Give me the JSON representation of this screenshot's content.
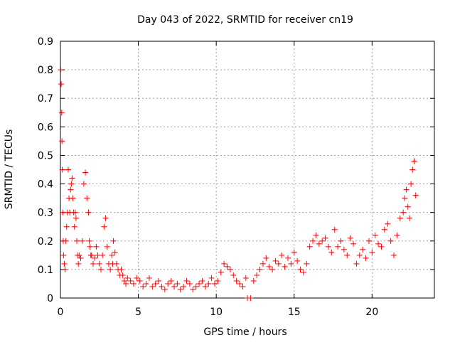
{
  "chart_data": {
    "type": "scatter",
    "title": "Day 043 of 2022, SRMTID for receiver cn19",
    "xlabel": "GPS time / hours",
    "ylabel": "SRMTID / TECUs",
    "xlim": [
      0,
      24
    ],
    "ylim": [
      0,
      0.9
    ],
    "xticks": [
      0,
      5,
      10,
      15,
      20
    ],
    "yticks": [
      0,
      0.1,
      0.2,
      0.3,
      0.4,
      0.5,
      0.6,
      0.7,
      0.8,
      0.9
    ],
    "xtick_labels": [
      "0",
      "5",
      "10",
      "15",
      "20"
    ],
    "ytick_labels": [
      "0",
      "0.1",
      "0.2",
      "0.3",
      "0.4",
      "0.5",
      "0.6",
      "0.7",
      "0.8",
      "0.9"
    ],
    "grid": true,
    "marker": "+",
    "color": "#ff0000",
    "series": [
      {
        "name": "SRMTID",
        "x": [
          0.02,
          0.05,
          0.08,
          0.1,
          0.12,
          0.15,
          0.18,
          0.2,
          0.25,
          0.3,
          0.35,
          0.4,
          0.45,
          0.5,
          0.55,
          0.6,
          0.65,
          0.7,
          0.75,
          0.8,
          0.85,
          0.9,
          0.95,
          1.0,
          1.05,
          1.1,
          1.15,
          1.2,
          1.3,
          1.4,
          1.5,
          1.6,
          1.7,
          1.8,
          1.85,
          1.9,
          1.95,
          2.0,
          2.1,
          2.2,
          2.3,
          2.4,
          2.5,
          2.6,
          2.7,
          2.8,
          2.9,
          3.0,
          3.1,
          3.2,
          3.3,
          3.35,
          3.4,
          3.5,
          3.6,
          3.7,
          3.8,
          3.9,
          4.0,
          4.1,
          4.2,
          4.3,
          4.5,
          4.7,
          4.9,
          5.1,
          5.3,
          5.5,
          5.7,
          5.9,
          6.1,
          6.3,
          6.5,
          6.7,
          6.9,
          7.1,
          7.3,
          7.5,
          7.7,
          7.9,
          8.1,
          8.3,
          8.5,
          8.7,
          8.9,
          9.1,
          9.3,
          9.5,
          9.7,
          9.9,
          10.1,
          10.3,
          10.5,
          10.7,
          10.9,
          11.1,
          11.3,
          11.5,
          11.7,
          11.9,
          12.0,
          12.2,
          12.4,
          12.6,
          12.8,
          13.0,
          13.2,
          13.4,
          13.6,
          13.8,
          14.0,
          14.2,
          14.4,
          14.6,
          14.8,
          15.0,
          15.2,
          15.4,
          15.6,
          15.8,
          16.0,
          16.2,
          16.4,
          16.6,
          16.8,
          17.0,
          17.2,
          17.4,
          17.6,
          17.8,
          18.0,
          18.2,
          18.4,
          18.6,
          18.8,
          19.0,
          19.2,
          19.4,
          19.6,
          19.8,
          20.0,
          20.2,
          20.4,
          20.6,
          20.8,
          21.0,
          21.2,
          21.4,
          21.6,
          21.8,
          22.0,
          22.1,
          22.2,
          22.3,
          22.4,
          22.5,
          22.6,
          22.7,
          22.8
        ],
        "values": [
          0.8,
          0.75,
          0.65,
          0.55,
          0.45,
          0.3,
          0.2,
          0.15,
          0.12,
          0.1,
          0.2,
          0.25,
          0.3,
          0.45,
          0.35,
          0.3,
          0.38,
          0.4,
          0.42,
          0.35,
          0.3,
          0.25,
          0.3,
          0.28,
          0.2,
          0.15,
          0.12,
          0.15,
          0.14,
          0.2,
          0.4,
          0.44,
          0.35,
          0.3,
          0.2,
          0.18,
          0.15,
          0.15,
          0.12,
          0.14,
          0.18,
          0.15,
          0.12,
          0.1,
          0.15,
          0.25,
          0.28,
          0.18,
          0.12,
          0.1,
          0.15,
          0.12,
          0.2,
          0.16,
          0.12,
          0.1,
          0.08,
          0.1,
          0.08,
          0.06,
          0.05,
          0.07,
          0.06,
          0.05,
          0.07,
          0.06,
          0.04,
          0.05,
          0.07,
          0.04,
          0.05,
          0.06,
          0.04,
          0.03,
          0.05,
          0.06,
          0.04,
          0.05,
          0.03,
          0.04,
          0.06,
          0.05,
          0.03,
          0.04,
          0.05,
          0.06,
          0.04,
          0.05,
          0.07,
          0.05,
          0.06,
          0.09,
          0.12,
          0.11,
          0.1,
          0.08,
          0.06,
          0.05,
          0.04,
          0.07,
          0.0,
          0.0,
          0.06,
          0.08,
          0.1,
          0.12,
          0.14,
          0.11,
          0.1,
          0.13,
          0.12,
          0.15,
          0.11,
          0.14,
          0.12,
          0.16,
          0.13,
          0.1,
          0.09,
          0.12,
          0.18,
          0.2,
          0.22,
          0.19,
          0.2,
          0.21,
          0.18,
          0.16,
          0.24,
          0.18,
          0.2,
          0.17,
          0.15,
          0.21,
          0.19,
          0.12,
          0.15,
          0.17,
          0.14,
          0.2,
          0.16,
          0.22,
          0.19,
          0.18,
          0.24,
          0.26,
          0.2,
          0.15,
          0.22,
          0.28,
          0.3,
          0.35,
          0.38,
          0.32,
          0.28,
          0.4,
          0.45,
          0.48,
          0.36
        ]
      }
    ]
  }
}
